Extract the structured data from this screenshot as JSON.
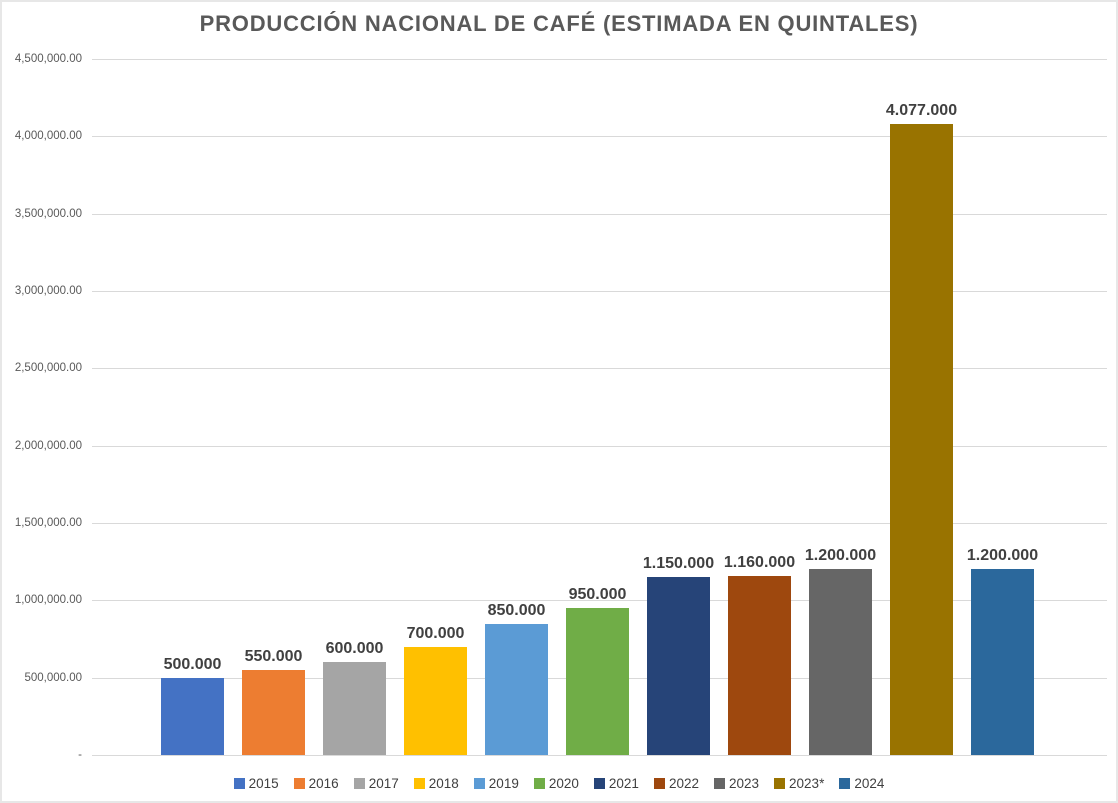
{
  "chart_data": {
    "type": "bar",
    "title": "PRODUCCIÓN NACIONAL DE CAFÉ (ESTIMADA EN QUINTALES)",
    "xlabel": "",
    "ylabel": "",
    "categories": [
      "2015",
      "2016",
      "2017",
      "2018",
      "2019",
      "2020",
      "2021",
      "2022",
      "2023",
      "2023*",
      "2024"
    ],
    "values": [
      500000,
      550000,
      600000,
      700000,
      850000,
      950000,
      1150000,
      1160000,
      1200000,
      4077000,
      1200000
    ],
    "data_labels": [
      "500.000",
      "550.000",
      "600.000",
      "700.000",
      "850.000",
      "950.000",
      "1.150.000",
      "1.160.000",
      "1.200.000",
      "4.077.000",
      "1.200.000"
    ],
    "colors": [
      "#4472C4",
      "#ED7D31",
      "#A5A5A5",
      "#FFC000",
      "#5B9BD5",
      "#70AD47",
      "#264478",
      "#9E480E",
      "#666666",
      "#997300",
      "#2B689C"
    ],
    "ylim": [
      0,
      4500000
    ],
    "y_ticks": [
      {
        "value": 4500000,
        "label": "4,500,000.00"
      },
      {
        "value": 4000000,
        "label": "4,000,000.00"
      },
      {
        "value": 3500000,
        "label": "3,500,000.00"
      },
      {
        "value": 3000000,
        "label": "3,000,000.00"
      },
      {
        "value": 2500000,
        "label": "2,500,000.00"
      },
      {
        "value": 2000000,
        "label": "2,000,000.00"
      },
      {
        "value": 1500000,
        "label": "1,500,000.00"
      },
      {
        "value": 1000000,
        "label": "1,000,000.00"
      },
      {
        "value": 500000,
        "label": "500,000.00"
      },
      {
        "value": 0,
        "label": "-"
      }
    ],
    "grid": true,
    "legend_position": "bottom"
  },
  "style": {
    "grid_color": "#d9d9d9",
    "title_color": "#595959",
    "tick_color": "#595959",
    "label_color": "#404040"
  }
}
